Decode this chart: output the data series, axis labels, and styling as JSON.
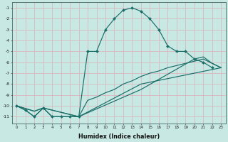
{
  "xlabel": "Humidex (Indice chaleur)",
  "bg_color": "#c8e8e4",
  "grid_color": "#d8b8c0",
  "line_color": "#1a6e68",
  "xlim": [
    -0.5,
    23.5
  ],
  "ylim": [
    -11.6,
    -0.5
  ],
  "xticks": [
    0,
    1,
    2,
    3,
    4,
    5,
    6,
    7,
    8,
    9,
    10,
    11,
    12,
    13,
    14,
    15,
    16,
    17,
    18,
    19,
    20,
    21,
    22,
    23
  ],
  "yticks": [
    -1,
    -2,
    -3,
    -4,
    -5,
    -6,
    -7,
    -8,
    -9,
    -10,
    -11
  ],
  "line1_x": [
    0,
    1,
    2,
    3,
    4,
    5,
    6,
    7,
    8,
    9,
    10,
    11,
    12,
    13,
    14,
    15,
    16,
    17,
    18,
    19,
    20,
    21,
    22
  ],
  "line1_y": [
    -10,
    -10.4,
    -11,
    -10.2,
    -11,
    -11,
    -11,
    -11,
    -5,
    -5,
    -3,
    -2,
    -1.2,
    -1.0,
    -1.3,
    -2,
    -3,
    -4.5,
    -5,
    -5,
    -5.7,
    -6,
    -6.5
  ],
  "line2_x": [
    0,
    1,
    2,
    3,
    4,
    5,
    6,
    7,
    8,
    9,
    10,
    11,
    12,
    13,
    14,
    15,
    16,
    17,
    18,
    19,
    20,
    21,
    22,
    23
  ],
  "line2_y": [
    -10,
    -10.4,
    -11,
    -10.2,
    -11,
    -11,
    -11,
    -11,
    -9.5,
    -9.2,
    -8.8,
    -8.5,
    -8.0,
    -7.7,
    -7.3,
    -7.0,
    -6.8,
    -6.5,
    -6.3,
    -6.1,
    -5.9,
    -5.7,
    -6.1,
    -6.5
  ],
  "line3_x": [
    0,
    2,
    3,
    7,
    14,
    20,
    21,
    22,
    23
  ],
  "line3_y": [
    -10,
    -10.5,
    -10.2,
    -11,
    -8.5,
    -5.7,
    -5.5,
    -6.1,
    -6.5
  ],
  "line4_x": [
    0,
    2,
    3,
    7,
    14,
    23
  ],
  "line4_y": [
    -10,
    -10.5,
    -10.2,
    -11,
    -8.0,
    -6.5
  ]
}
